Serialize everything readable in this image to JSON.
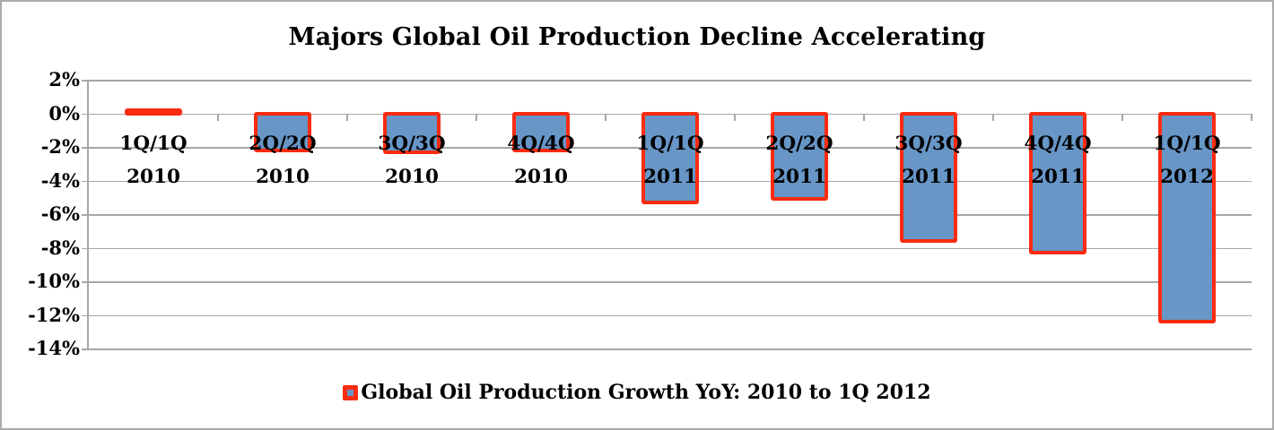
{
  "frame": {
    "border_color": "#ABABAB",
    "background": "#FFFFFF"
  },
  "chart_data": {
    "type": "bar",
    "title": "Majors Global Oil Production Decline Accelerating",
    "categories": [
      {
        "period": "1Q/1Q",
        "year": "2010"
      },
      {
        "period": "2Q/2Q",
        "year": "2010"
      },
      {
        "period": "3Q/3Q",
        "year": "2010"
      },
      {
        "period": "4Q/4Q",
        "year": "2010"
      },
      {
        "period": "1Q/1Q",
        "year": "2011"
      },
      {
        "period": "2Q/2Q",
        "year": "2011"
      },
      {
        "period": "3Q/3Q",
        "year": "2011"
      },
      {
        "period": "4Q/4Q",
        "year": "2011"
      },
      {
        "period": "1Q/1Q",
        "year": "2012"
      }
    ],
    "values": [
      0.2,
      -2.2,
      -2.3,
      -2.2,
      -5.3,
      -5.1,
      -7.6,
      -8.3,
      -12.4
    ],
    "unit": "%",
    "xlabel": "",
    "ylabel": "",
    "ylim": [
      -14,
      2
    ],
    "y_step": 2,
    "y_tick_labels": [
      "2%",
      "0%",
      "-2%",
      "-4%",
      "-6%",
      "-8%",
      "-10%",
      "-12%",
      "-14%"
    ],
    "grid": true,
    "legend": {
      "label": "Global Oil Production Growth YoY: 2010 to 1Q 2012",
      "position": "bottom",
      "swatch": "blue-fill-red-border"
    },
    "colors": {
      "bar_fill": "#6796C7",
      "bar_border": "#FA2B10",
      "gridline": "#A6A6A6",
      "axis_line": "#A6A6A6",
      "text": "#000000"
    }
  }
}
